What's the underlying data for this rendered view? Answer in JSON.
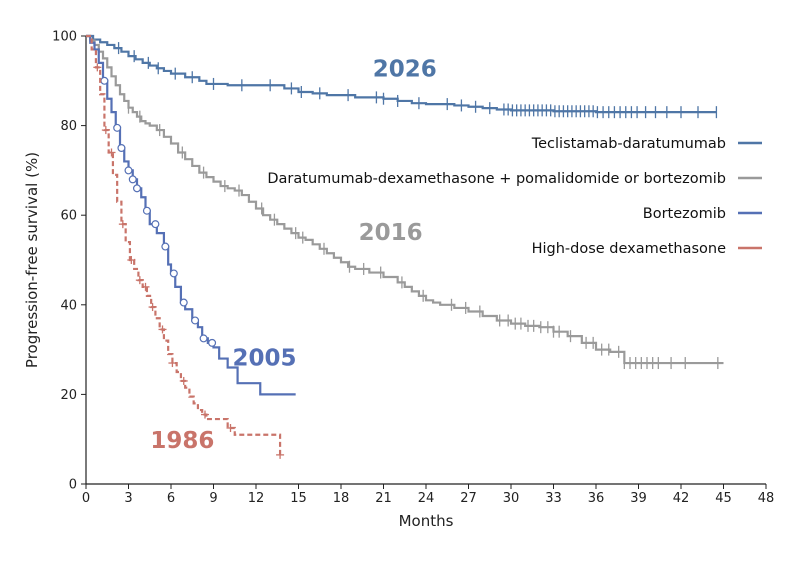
{
  "chart_data": {
    "type": "line",
    "title": "",
    "xlabel": "Months",
    "ylabel": "Progression-free survival (%)",
    "xlim": [
      0,
      48
    ],
    "ylim": [
      0,
      100
    ],
    "xticks": [
      0,
      3,
      6,
      9,
      12,
      15,
      18,
      21,
      24,
      27,
      30,
      33,
      36,
      39,
      42,
      45,
      48
    ],
    "yticks": [
      0,
      20,
      40,
      60,
      80,
      100
    ],
    "grid": false,
    "series": [
      {
        "name": "Teclistamab-daratumumab",
        "year": "2026",
        "color": "#4f76a6",
        "style": "step-solid",
        "marker": "tick",
        "points": [
          [
            0,
            100
          ],
          [
            0.5,
            99.2
          ],
          [
            1,
            98.6
          ],
          [
            1.5,
            98
          ],
          [
            2,
            97.3
          ],
          [
            2.5,
            96.5
          ],
          [
            3,
            95.5
          ],
          [
            3.5,
            94.8
          ],
          [
            4,
            94
          ],
          [
            4.5,
            93.4
          ],
          [
            5,
            92.8
          ],
          [
            5.5,
            92.2
          ],
          [
            6,
            91.6
          ],
          [
            7,
            90.8
          ],
          [
            8,
            90
          ],
          [
            8.5,
            89.3
          ],
          [
            10,
            89
          ],
          [
            12,
            89
          ],
          [
            14,
            88.3
          ],
          [
            15,
            87.5
          ],
          [
            16,
            87.2
          ],
          [
            17,
            86.8
          ],
          [
            19,
            86.3
          ],
          [
            21,
            86
          ],
          [
            22,
            85.5
          ],
          [
            23,
            85
          ],
          [
            24,
            84.8
          ],
          [
            26,
            84.5
          ],
          [
            27,
            84.2
          ],
          [
            28,
            83.9
          ],
          [
            29,
            83.6
          ],
          [
            30,
            83.4
          ],
          [
            33,
            83.2
          ],
          [
            36,
            83
          ],
          [
            40,
            83
          ],
          [
            44.5,
            83
          ]
        ],
        "censors": [
          2.3,
          3.4,
          4.4,
          5.1,
          6.3,
          7.5,
          9,
          11,
          13,
          14.5,
          15.2,
          16.5,
          18.5,
          20.5,
          21,
          22,
          23.5,
          25.5,
          26.5,
          27.5,
          28.5,
          29.5,
          29.8,
          30.1,
          30.4,
          30.7,
          31,
          31.3,
          31.6,
          31.9,
          32.2,
          32.5,
          32.8,
          33.1,
          33.4,
          33.7,
          34,
          34.3,
          34.6,
          34.9,
          35.2,
          35.5,
          35.8,
          36.1,
          36.5,
          36.9,
          37.3,
          37.7,
          38.1,
          38.5,
          38.9,
          39.5,
          40.2,
          41,
          42,
          43.2,
          44.5
        ]
      },
      {
        "name": "Daratumumab-dexamethasone + pomalidomide or bortezomib",
        "year": "2016",
        "color": "#9a9a9a",
        "style": "step-solid",
        "marker": "tick",
        "points": [
          [
            0,
            100
          ],
          [
            0.3,
            99
          ],
          [
            0.6,
            98
          ],
          [
            0.9,
            96.5
          ],
          [
            1.2,
            95
          ],
          [
            1.5,
            93
          ],
          [
            1.8,
            91
          ],
          [
            2.1,
            89
          ],
          [
            2.4,
            87
          ],
          [
            2.7,
            85.5
          ],
          [
            3,
            84
          ],
          [
            3.3,
            83
          ],
          [
            3.6,
            82
          ],
          [
            3.9,
            81
          ],
          [
            4.2,
            80.5
          ],
          [
            4.5,
            80
          ],
          [
            5,
            79
          ],
          [
            5.5,
            77.5
          ],
          [
            6,
            76
          ],
          [
            6.5,
            74
          ],
          [
            7,
            72.5
          ],
          [
            7.5,
            71
          ],
          [
            8,
            69.5
          ],
          [
            8.5,
            68.5
          ],
          [
            9,
            67.5
          ],
          [
            9.5,
            66.5
          ],
          [
            10,
            66
          ],
          [
            10.5,
            65.5
          ],
          [
            11,
            64.5
          ],
          [
            11.5,
            63
          ],
          [
            12,
            61.5
          ],
          [
            12.5,
            60
          ],
          [
            13,
            59
          ],
          [
            13.5,
            58
          ],
          [
            14,
            57
          ],
          [
            14.5,
            56
          ],
          [
            15,
            55
          ],
          [
            15.5,
            54.5
          ],
          [
            16,
            53.5
          ],
          [
            16.5,
            52.5
          ],
          [
            17,
            51.5
          ],
          [
            17.5,
            50.5
          ],
          [
            18,
            49.5
          ],
          [
            18.5,
            48.5
          ],
          [
            19,
            48
          ],
          [
            20,
            47.2
          ],
          [
            21,
            46.2
          ],
          [
            22,
            45
          ],
          [
            22.5,
            44
          ],
          [
            23,
            43
          ],
          [
            23.5,
            42
          ],
          [
            24,
            41
          ],
          [
            24.5,
            40.5
          ],
          [
            25,
            40
          ],
          [
            26,
            39.3
          ],
          [
            27,
            38.5
          ],
          [
            28,
            37.5
          ],
          [
            29,
            36.5
          ],
          [
            30,
            35.8
          ],
          [
            31,
            35.3
          ],
          [
            32,
            35
          ],
          [
            33,
            34
          ],
          [
            34,
            33
          ],
          [
            35,
            31.5
          ],
          [
            36,
            30
          ],
          [
            37,
            29.5
          ],
          [
            38,
            27
          ],
          [
            40,
            27
          ],
          [
            42,
            27
          ],
          [
            45,
            27
          ]
        ],
        "censors": [
          3,
          3.8,
          5.2,
          6.8,
          8.3,
          9.8,
          10.8,
          12.4,
          13.3,
          14.8,
          15.3,
          16.8,
          18.6,
          19.6,
          20.8,
          22.3,
          23.8,
          25.8,
          26.8,
          27.8,
          29.2,
          29.8,
          30.3,
          30.7,
          31.2,
          31.6,
          32.1,
          32.6,
          33,
          33.4,
          34.2,
          35.3,
          35.8,
          36.4,
          36.9,
          37.6,
          38,
          38.4,
          38.8,
          39.2,
          39.6,
          40,
          40.4,
          41.3,
          42.3,
          44.6
        ]
      },
      {
        "name": "Bortezomib",
        "year": "2005",
        "color": "#5570b5",
        "style": "step-solid",
        "marker": "circle",
        "points": [
          [
            0,
            100
          ],
          [
            0.3,
            98.5
          ],
          [
            0.6,
            97
          ],
          [
            0.9,
            94
          ],
          [
            1.2,
            90
          ],
          [
            1.5,
            86
          ],
          [
            1.8,
            83
          ],
          [
            2.1,
            79.5
          ],
          [
            2.4,
            75
          ],
          [
            2.7,
            72
          ],
          [
            3,
            70
          ],
          [
            3.3,
            68
          ],
          [
            3.6,
            66
          ],
          [
            3.9,
            64
          ],
          [
            4.2,
            61
          ],
          [
            4.5,
            58
          ],
          [
            5,
            56
          ],
          [
            5.5,
            53
          ],
          [
            5.8,
            49
          ],
          [
            6,
            47
          ],
          [
            6.3,
            44
          ],
          [
            6.7,
            40.5
          ],
          [
            7,
            39
          ],
          [
            7.5,
            36.5
          ],
          [
            7.9,
            35
          ],
          [
            8.2,
            32.5
          ],
          [
            8.6,
            31.5
          ],
          [
            9,
            30.5
          ],
          [
            9.4,
            28
          ],
          [
            10,
            26
          ],
          [
            10.7,
            22.5
          ],
          [
            12,
            22.5
          ],
          [
            12.3,
            20
          ],
          [
            14.8,
            20
          ]
        ],
        "censors": [
          1.3,
          2.2,
          2.5,
          3,
          3.3,
          3.6,
          4.3,
          4.9,
          5.6,
          6.2,
          6.9,
          7.7,
          8.3,
          8.9
        ]
      },
      {
        "name": "High-dose dexamethasone",
        "year": "1986",
        "color": "#c9746a",
        "style": "step-dashed",
        "marker": "plus",
        "points": [
          [
            0,
            100
          ],
          [
            0.4,
            97
          ],
          [
            0.7,
            93
          ],
          [
            1,
            87
          ],
          [
            1.3,
            79
          ],
          [
            1.6,
            74
          ],
          [
            1.9,
            69
          ],
          [
            2.2,
            63
          ],
          [
            2.5,
            58
          ],
          [
            2.8,
            54
          ],
          [
            3.1,
            50
          ],
          [
            3.4,
            48
          ],
          [
            3.7,
            45.5
          ],
          [
            4,
            44
          ],
          [
            4.3,
            42
          ],
          [
            4.6,
            39.5
          ],
          [
            4.9,
            37
          ],
          [
            5.2,
            34.5
          ],
          [
            5.5,
            32
          ],
          [
            5.8,
            29
          ],
          [
            6.1,
            27
          ],
          [
            6.4,
            25
          ],
          [
            6.7,
            23
          ],
          [
            7,
            21.5
          ],
          [
            7.3,
            19.5
          ],
          [
            7.6,
            18
          ],
          [
            7.9,
            16.5
          ],
          [
            8.2,
            15.5
          ],
          [
            8.5,
            14.5
          ],
          [
            9,
            14.5
          ],
          [
            10,
            12.5
          ],
          [
            10.5,
            11
          ],
          [
            13.7,
            11
          ],
          [
            13.7,
            6.5
          ]
        ],
        "censors": [
          0.8,
          1.4,
          1.8,
          2.6,
          3.2,
          3.8,
          4.2,
          4.7,
          5.4,
          6.1,
          6.9,
          8.4,
          10.2,
          13.7
        ]
      }
    ],
    "annotations": [
      "2026",
      "2016",
      "2005",
      "1986"
    ],
    "legend": [
      "Teclistamab-daratumumab",
      "Daratumumab-dexamethasone + pomalidomide or bortezomib",
      "Bortezomib",
      "High-dose dexamethasone"
    ],
    "legend_position": "right"
  }
}
